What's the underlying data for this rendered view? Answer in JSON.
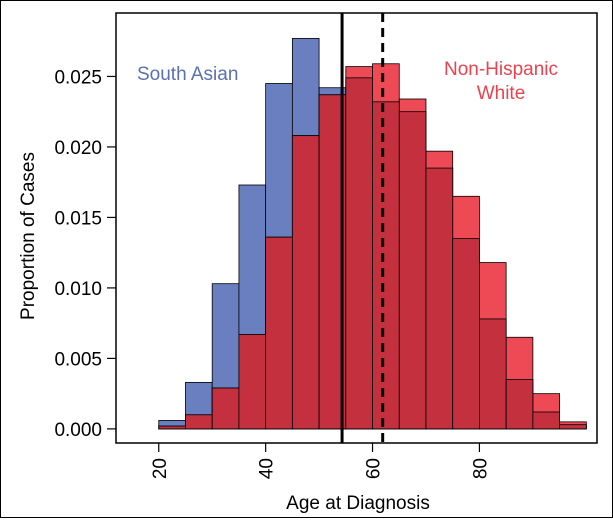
{
  "chart_data": {
    "type": "bar",
    "xlabel": "Age at Diagnosis",
    "ylabel": "Proportion of Cases",
    "xlim": [
      12,
      102
    ],
    "ylim": [
      -0.001,
      0.0295
    ],
    "x_ticks": [
      20,
      40,
      60,
      80
    ],
    "y_ticks": [
      0.0,
      0.005,
      0.01,
      0.015,
      0.02,
      0.025
    ],
    "y_tick_labels": [
      "0.000",
      "0.005",
      "0.010",
      "0.015",
      "0.020",
      "0.025"
    ],
    "x_tick_labels": [
      "20",
      "40",
      "60",
      "80"
    ],
    "bin_edges": [
      15,
      20,
      25,
      30,
      35,
      40,
      45,
      50,
      55,
      60,
      65,
      70,
      75,
      80,
      85,
      90,
      95,
      100
    ],
    "series": [
      {
        "name": "South Asian",
        "color": "#6a7fbf",
        "values": [
          0.0,
          0.0006,
          0.0033,
          0.0103,
          0.0173,
          0.0245,
          0.0277,
          0.0242,
          0.0249,
          0.0232,
          0.0225,
          0.0185,
          0.0135,
          0.0078,
          0.0035,
          0.0012,
          0.0003
        ]
      },
      {
        "name": "Non-Hispanic White",
        "color": "#ee4a56",
        "values": [
          0.0,
          0.0002,
          0.001,
          0.0029,
          0.0067,
          0.0136,
          0.0208,
          0.0237,
          0.0257,
          0.0259,
          0.0234,
          0.0197,
          0.0165,
          0.0118,
          0.0065,
          0.0025,
          0.0005
        ]
      }
    ],
    "annotations": [
      {
        "text": "South Asian",
        "color": "#5b6fb5"
      },
      {
        "text": "Non-Hispanic",
        "color": "#e8434f"
      },
      {
        "text": "White",
        "color": "#e8434f"
      }
    ],
    "vertical_lines": [
      {
        "x": 54.3,
        "style": "solid"
      },
      {
        "x": 61.9,
        "style": "dashed"
      }
    ],
    "grid": false,
    "legend": "none"
  }
}
